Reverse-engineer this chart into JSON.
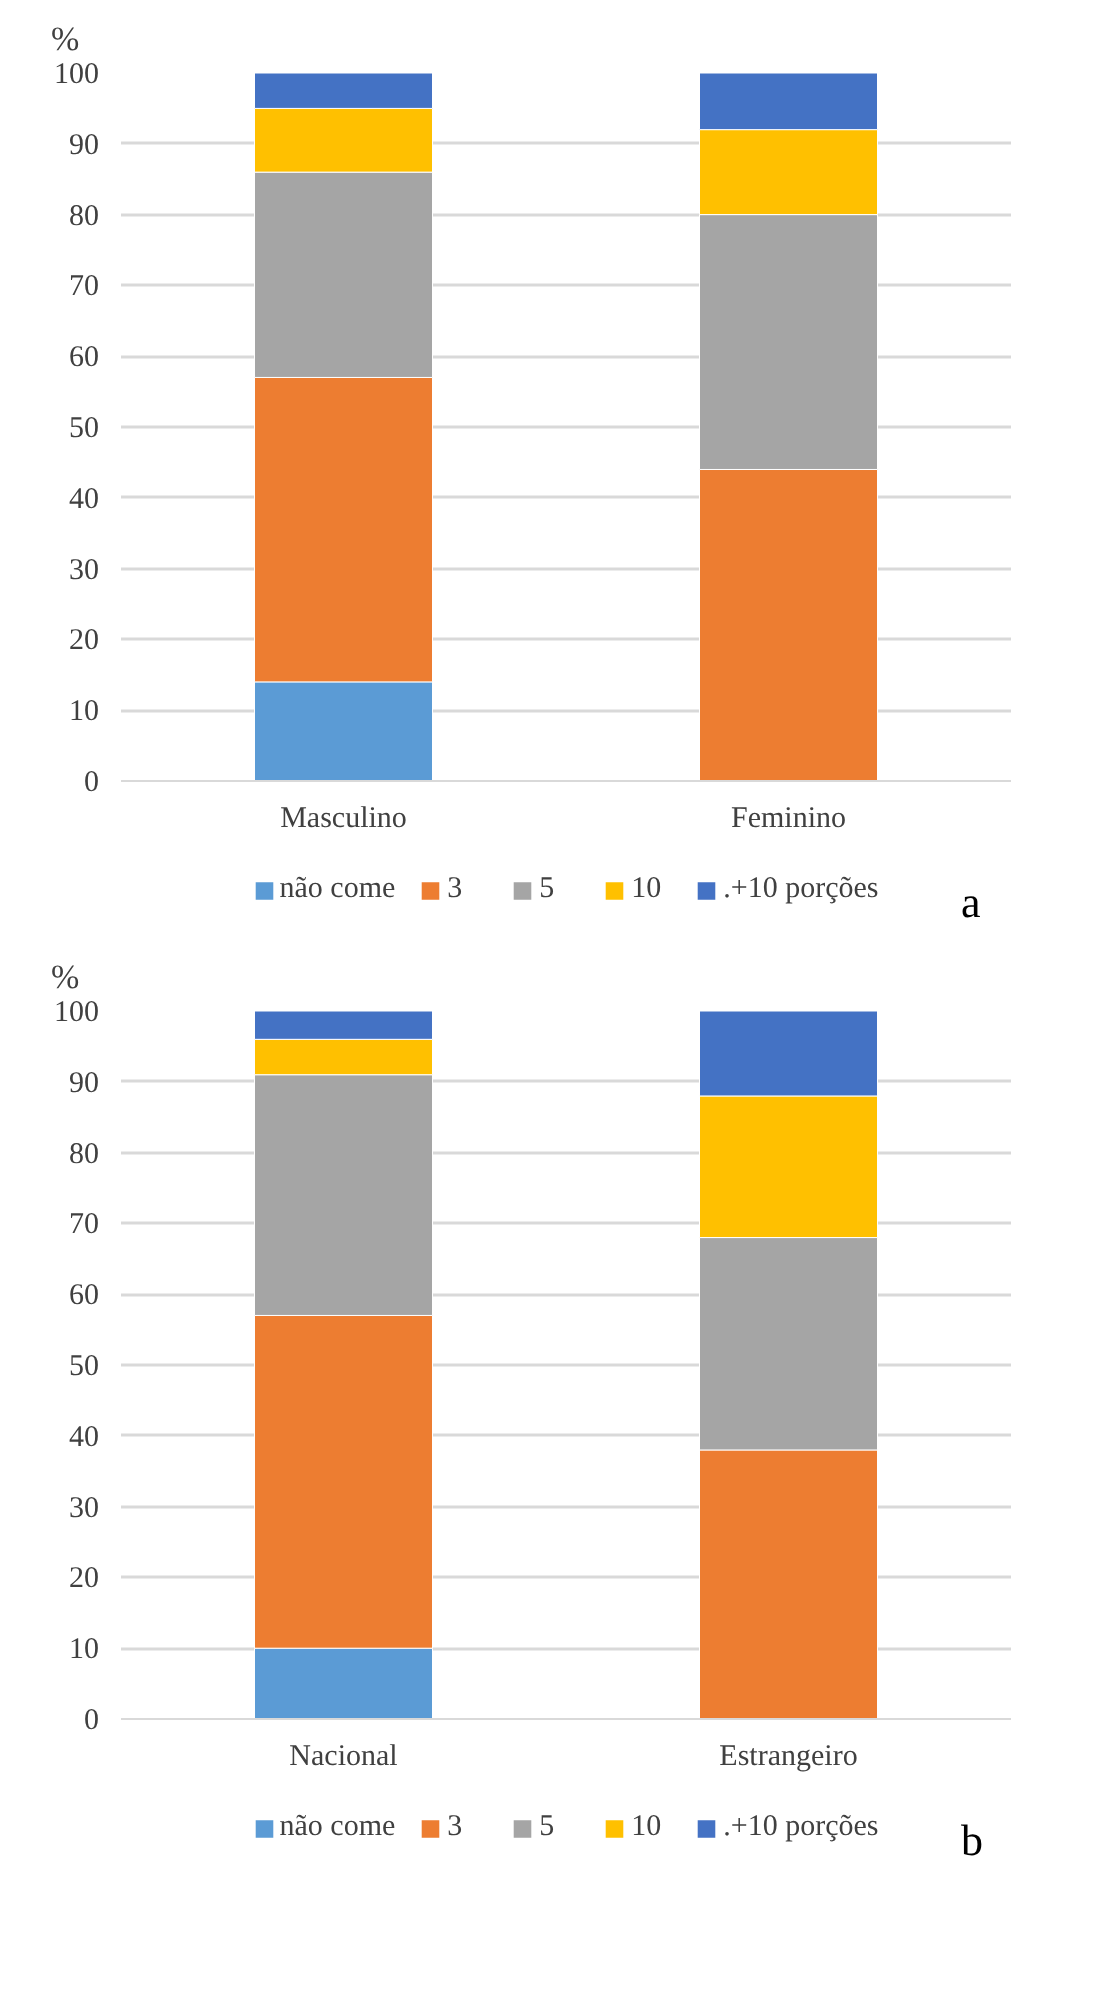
{
  "chart_data": [
    {
      "type": "bar",
      "stacked": true,
      "ylabel": "%",
      "categories": [
        "Masculino",
        "Feminino"
      ],
      "ylim": [
        0,
        100
      ],
      "yticks": [
        0,
        10,
        20,
        30,
        40,
        50,
        60,
        70,
        80,
        90,
        100
      ],
      "grid": "y",
      "legend": "bottom",
      "annotations": [
        "a"
      ],
      "series": [
        {
          "name": "não come",
          "color": "#5b9bd5",
          "values": [
            14,
            0
          ]
        },
        {
          "name": "3",
          "color": "#ed7d31",
          "values": [
            43,
            44
          ]
        },
        {
          "name": "5",
          "color": "#a5a5a5",
          "values": [
            29,
            36
          ]
        },
        {
          "name": "10",
          "color": "#ffc000",
          "values": [
            9,
            12
          ]
        },
        {
          "name": ".+10 porções",
          "color": "#4472c4",
          "values": [
            5,
            8
          ]
        }
      ]
    },
    {
      "type": "bar",
      "stacked": true,
      "ylabel": "%",
      "categories": [
        "Nacional",
        "Estrangeiro"
      ],
      "ylim": [
        0,
        100
      ],
      "yticks": [
        0,
        10,
        20,
        30,
        40,
        50,
        60,
        70,
        80,
        90,
        100
      ],
      "grid": "y",
      "legend": "bottom",
      "annotations": [
        "b"
      ],
      "series": [
        {
          "name": "não come",
          "color": "#5b9bd5",
          "values": [
            10,
            0
          ]
        },
        {
          "name": "3",
          "color": "#ed7d31",
          "values": [
            47,
            38
          ]
        },
        {
          "name": "5",
          "color": "#a5a5a5",
          "values": [
            34,
            30
          ]
        },
        {
          "name": "10",
          "color": "#ffc000",
          "values": [
            5,
            20
          ]
        },
        {
          "name": ".+10 porções",
          "color": "#4472c4",
          "values": [
            4,
            12
          ]
        }
      ]
    }
  ]
}
